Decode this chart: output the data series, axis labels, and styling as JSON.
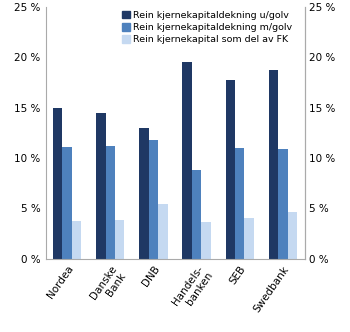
{
  "categories": [
    "Nordea",
    "Danske\nBank",
    "DNB",
    "Handels-\nbanken",
    "SEB",
    "Swedbank"
  ],
  "series1_name": "Rein kjernekapitaldekning u/golv",
  "series2_name": "Rein kjernekapitaldekning m/golv",
  "series3_name": "Rein kjernekapital som del av FK",
  "series1_values": [
    15.0,
    14.5,
    13.0,
    19.5,
    17.7,
    18.7
  ],
  "series2_values": [
    11.1,
    11.2,
    11.8,
    8.8,
    11.0,
    10.9
  ],
  "series3_values": [
    3.8,
    3.9,
    5.4,
    3.7,
    4.1,
    4.7
  ],
  "color1": "#1f3864",
  "color2": "#4e81bd",
  "color3": "#c5d9f1",
  "ylim": [
    0,
    25
  ],
  "yticks": [
    0,
    5,
    10,
    15,
    20,
    25
  ],
  "ytick_labels": [
    "0 %",
    "5 %",
    "10 %",
    "15 %",
    "20 %",
    "25 %"
  ],
  "bar_width": 0.22,
  "legend_fontsize": 6.8,
  "tick_fontsize": 7.5,
  "xlabel_fontsize": 7.5,
  "background_color": "#ffffff"
}
